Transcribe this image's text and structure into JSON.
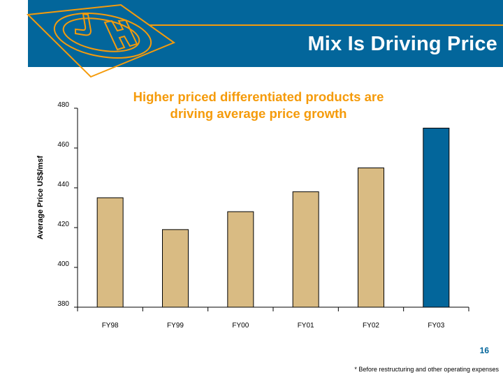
{
  "slide": {
    "title": "Mix Is Driving Price",
    "page_number": "16",
    "footnote": "* Before restructuring and other operating expenses",
    "logo": "JH-logo-icon",
    "colors": {
      "banner": "#03669b",
      "accent": "#f59b0b",
      "bar_default": "#d9bb83",
      "bar_highlight": "#03669b"
    }
  },
  "chart_data": {
    "type": "bar",
    "title": "Higher priced differentiated products are driving average price growth",
    "title_lines": [
      "Higher priced differentiated products are",
      "driving average price growth"
    ],
    "xlabel": "",
    "ylabel": "Average Price US$/msf",
    "categories": [
      "FY98",
      "FY99",
      "FY00",
      "FY01",
      "FY02",
      "FY03"
    ],
    "values": [
      435,
      419,
      428,
      438,
      450,
      470
    ],
    "highlight": [
      "FY03"
    ],
    "ylim": [
      380,
      480
    ],
    "yticks": [
      380,
      400,
      420,
      440,
      460,
      480
    ],
    "grid": false,
    "legend": "none"
  }
}
